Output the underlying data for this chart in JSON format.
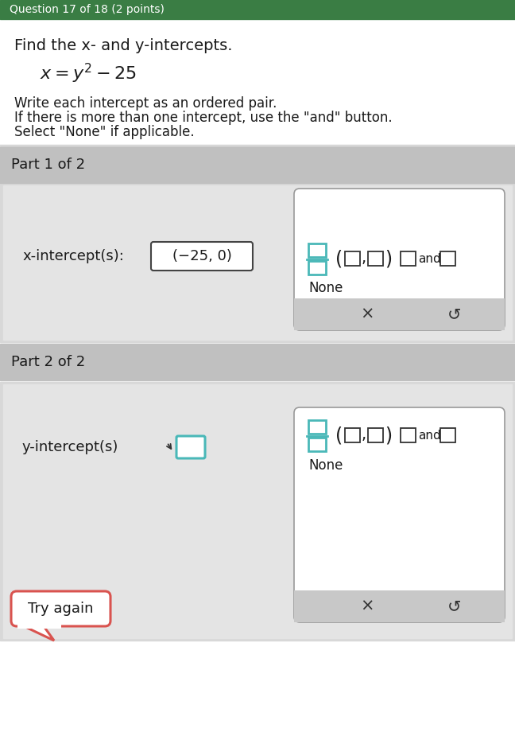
{
  "bg_color": "#e8e8e8",
  "white": "#ffffff",
  "dark_text": "#1a1a1a",
  "gray_header": "#b8b8b8",
  "light_gray_panel": "#e0e0e0",
  "teal": "#4ab8b8",
  "orange_red": "#d9534f",
  "title_bar_color": "#3a7d44",
  "title_bar_text": "Question 17 of 18 (2 points)",
  "main_title": "Find the x- and y-intercepts.",
  "instruction_line1": "Write each intercept as an ordered pair.",
  "instruction_line2": "If there is more than one intercept, use the \"and\" button.",
  "instruction_line3": "Select \"None\" if applicable.",
  "part1_label": "Part 1 of 2",
  "part2_label": "Part 2 of 2",
  "x_intercept_label": "x-intercept(s):",
  "x_intercept_value": "(−25, 0)",
  "y_intercept_label": "y-intercept(s)",
  "none_text": "None",
  "x_symbol": "×",
  "undo_symbol": "↺",
  "try_again_text": "Try again"
}
